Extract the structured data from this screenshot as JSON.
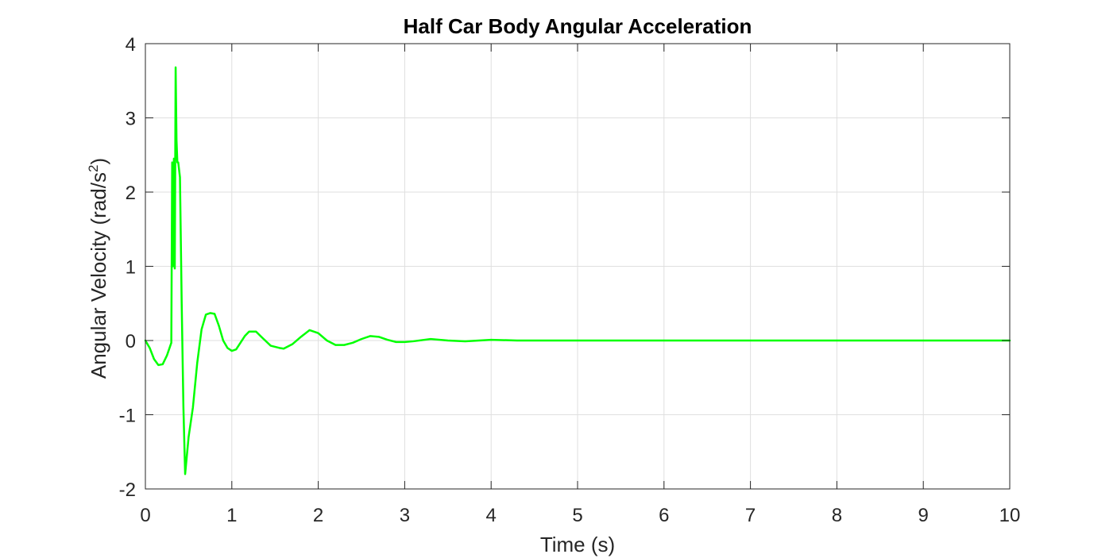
{
  "chart_data": {
    "type": "line",
    "title": "Half Car Body Angular Acceleration",
    "xlabel": "Time (s)",
    "ylabel_main": "Angular Velocity (rad/s",
    "ylabel_sup": "2",
    "ylabel_close": ")",
    "xlim": [
      0,
      10
    ],
    "ylim": [
      -2,
      4
    ],
    "xticks": [
      0,
      1,
      2,
      3,
      4,
      5,
      6,
      7,
      8,
      9,
      10
    ],
    "xtick_labels": [
      "0",
      "1",
      "2",
      "3",
      "4",
      "5",
      "6",
      "7",
      "8",
      "9",
      "10"
    ],
    "yticks": [
      -2,
      -1,
      0,
      1,
      2,
      3,
      4
    ],
    "ytick_labels": [
      "-2",
      "-1",
      "0",
      "1",
      "2",
      "3",
      "4"
    ],
    "grid": true,
    "series": [
      {
        "color": "#00ff00",
        "x": [
          0,
          0.05,
          0.1,
          0.15,
          0.2,
          0.25,
          0.3,
          0.31,
          0.32,
          0.33,
          0.34,
          0.35,
          0.36,
          0.37,
          0.38,
          0.4,
          0.42,
          0.44,
          0.46,
          0.5,
          0.55,
          0.6,
          0.65,
          0.7,
          0.75,
          0.8,
          0.85,
          0.9,
          0.95,
          1.0,
          1.05,
          1.1,
          1.15,
          1.2,
          1.28,
          1.35,
          1.45,
          1.55,
          1.6,
          1.7,
          1.8,
          1.9,
          2.0,
          2.1,
          2.2,
          2.3,
          2.4,
          2.5,
          2.6,
          2.7,
          2.8,
          2.9,
          3.0,
          3.1,
          3.3,
          3.5,
          3.7,
          4.0,
          4.3,
          5.0,
          6.0,
          7.0,
          8.0,
          9.0,
          10.0
        ],
        "y": [
          0,
          -0.1,
          -0.25,
          -0.33,
          -0.32,
          -0.2,
          -0.03,
          2.4,
          1.0,
          2.45,
          0.97,
          3.68,
          2.7,
          2.4,
          2.4,
          2.2,
          0.5,
          -0.9,
          -1.8,
          -1.3,
          -0.9,
          -0.3,
          0.15,
          0.35,
          0.37,
          0.36,
          0.2,
          0.0,
          -0.1,
          -0.14,
          -0.12,
          -0.03,
          0.06,
          0.12,
          0.12,
          0.04,
          -0.07,
          -0.1,
          -0.11,
          -0.05,
          0.05,
          0.14,
          0.1,
          0.0,
          -0.06,
          -0.06,
          -0.03,
          0.02,
          0.06,
          0.05,
          0.01,
          -0.02,
          -0.02,
          -0.01,
          0.02,
          0.0,
          -0.01,
          0.01,
          0.0,
          0.0,
          0.0,
          0.0,
          0.0,
          0.0,
          0.0
        ]
      }
    ]
  }
}
